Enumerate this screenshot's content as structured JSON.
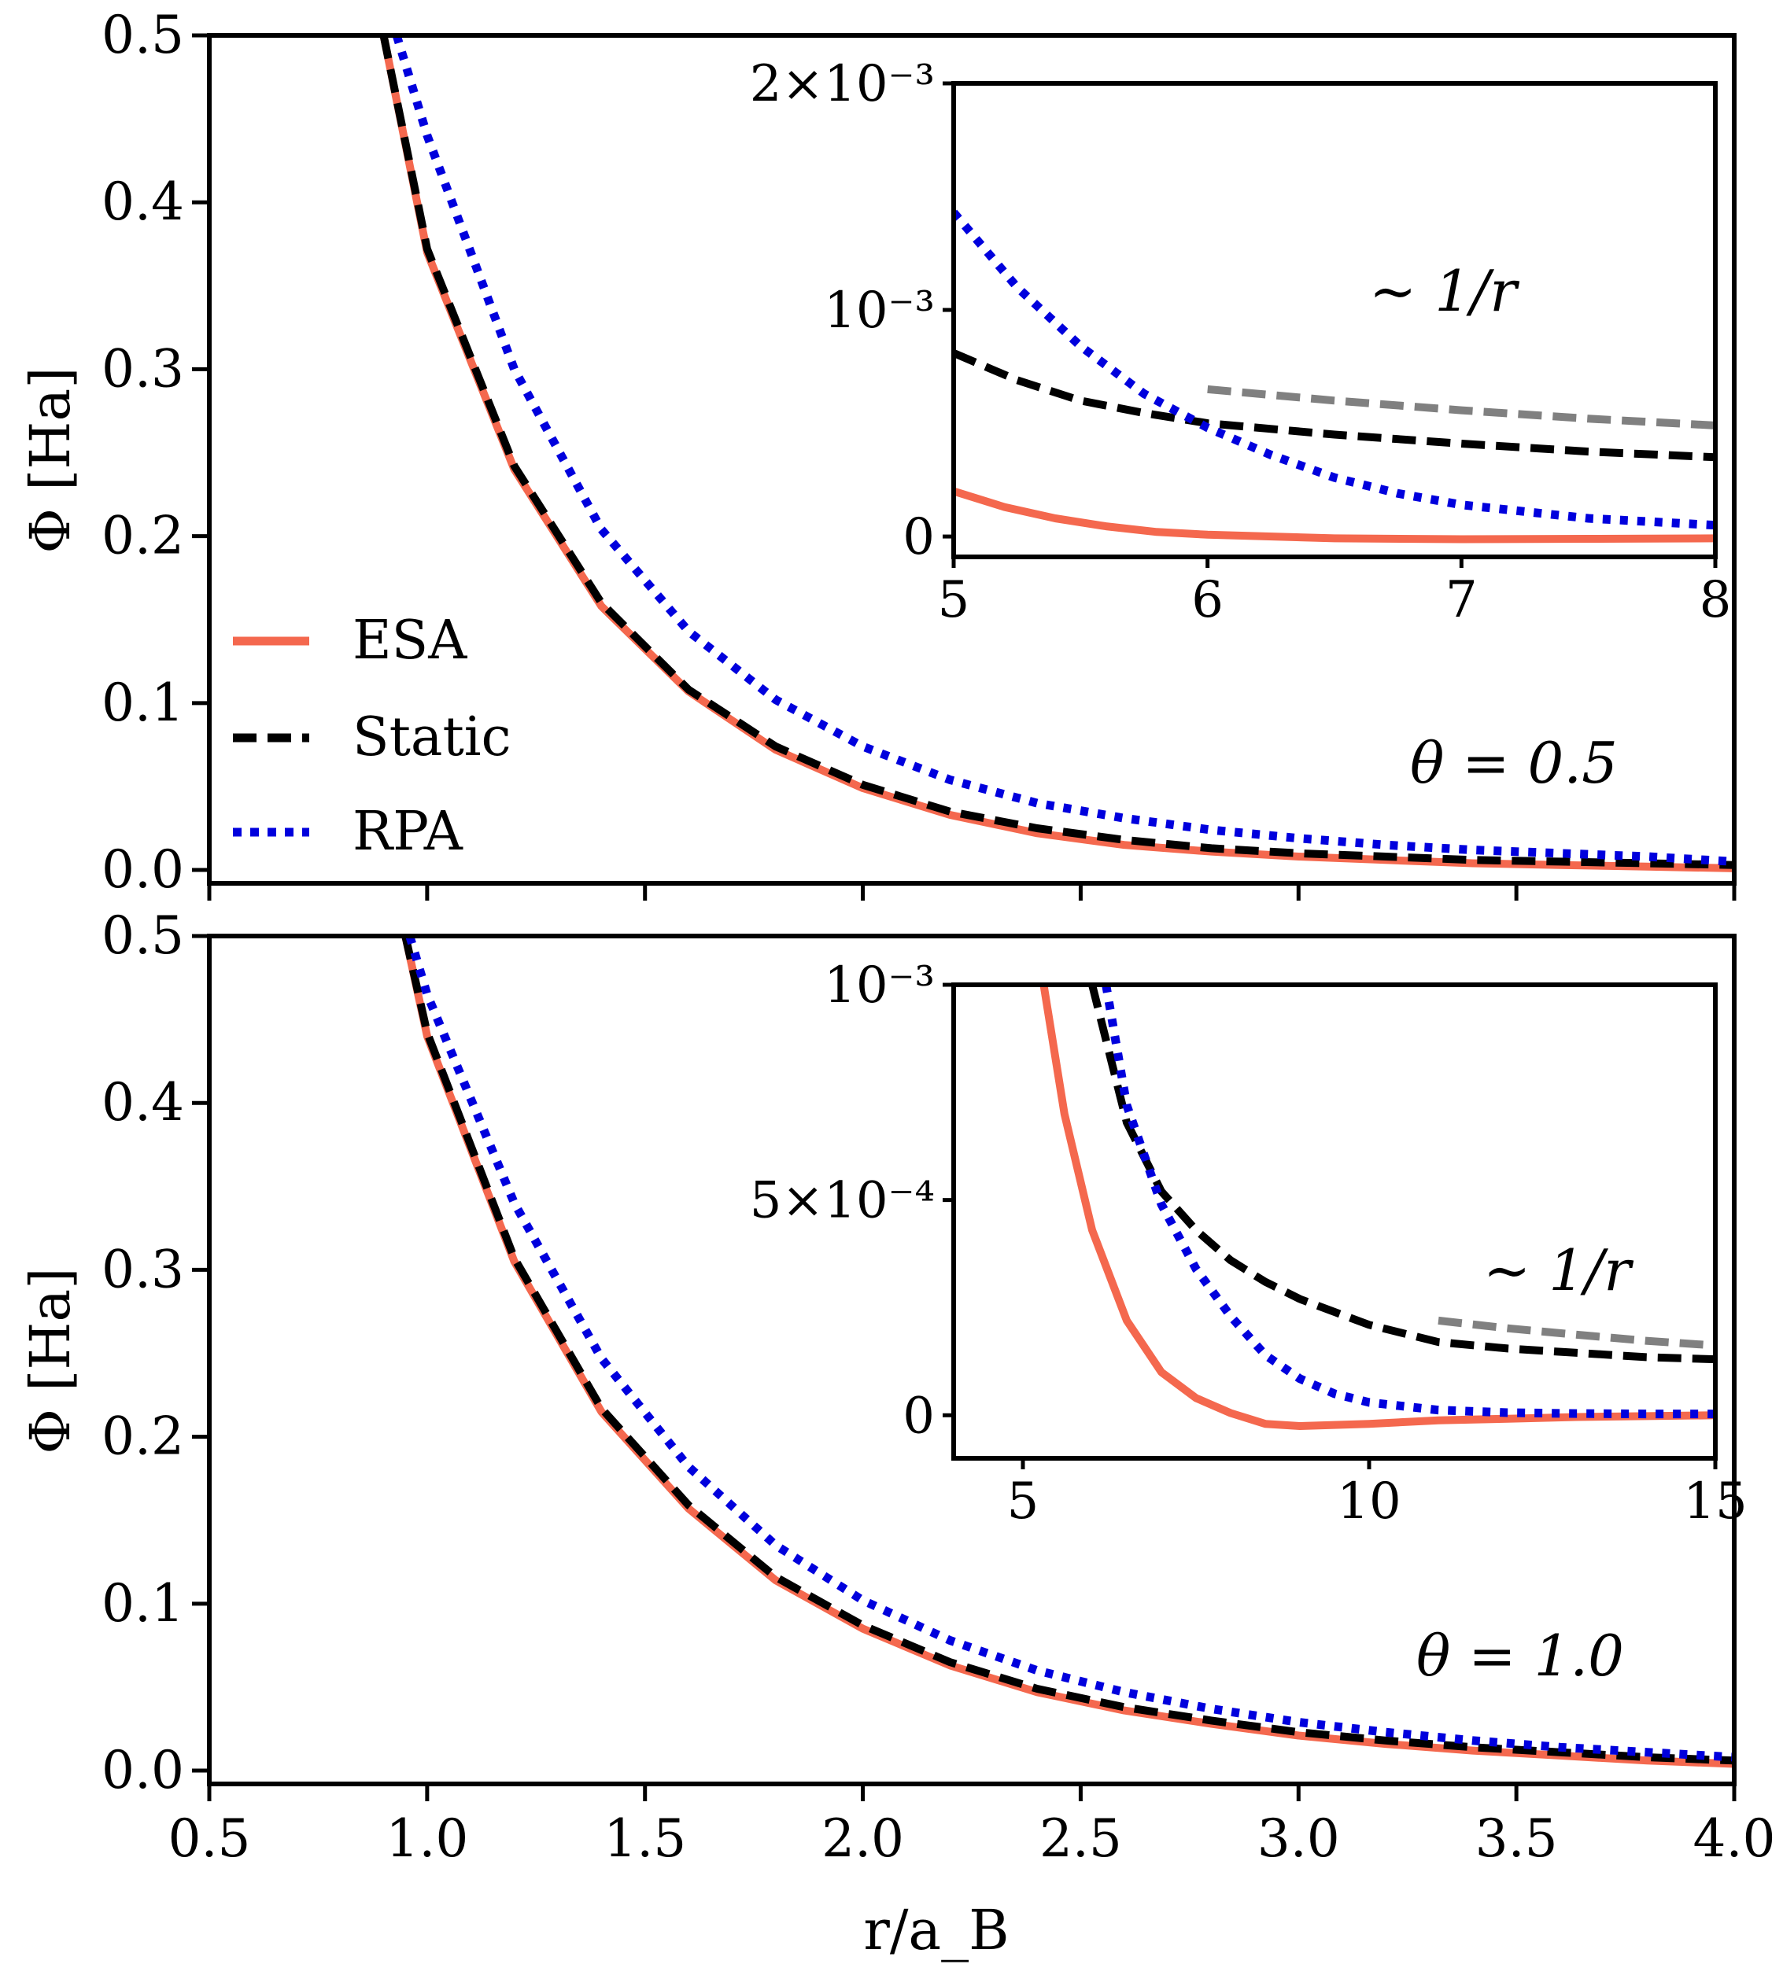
{
  "chart_data": [
    {
      "type": "line",
      "panel": "top",
      "xlabel": "r/a_B",
      "ylabel": "Φ [Ha]",
      "xlim": [
        0.5,
        4.0
      ],
      "ylim": [
        -0.008,
        0.5
      ],
      "xticks": [
        0.5,
        1.0,
        1.5,
        2.0,
        2.5,
        3.0,
        3.5,
        4.0
      ],
      "yticks": [
        0.0,
        0.1,
        0.2,
        0.3,
        0.4,
        0.5
      ],
      "ytick_labels": [
        "0.0",
        "0.1",
        "0.2",
        "0.3",
        "0.4",
        "0.5"
      ],
      "annotation": "θ = 0.5",
      "legend": [
        "ESA",
        "Static",
        "RPA"
      ],
      "series": [
        {
          "name": "ESA",
          "color": "#f4684e",
          "style": "solid",
          "x": [
            0.9,
            1.0,
            1.2,
            1.4,
            1.6,
            1.8,
            2.0,
            2.2,
            2.4,
            2.6,
            2.8,
            3.0,
            3.2,
            3.4,
            3.6,
            3.8,
            4.0
          ],
          "y": [
            0.5,
            0.37,
            0.24,
            0.158,
            0.107,
            0.072,
            0.049,
            0.033,
            0.022,
            0.015,
            0.011,
            0.008,
            0.006,
            0.004,
            0.003,
            0.002,
            0.001
          ]
        },
        {
          "name": "Static",
          "color": "#000000",
          "style": "dashed",
          "x": [
            0.9,
            1.0,
            1.2,
            1.4,
            1.6,
            1.8,
            2.0,
            2.2,
            2.4,
            2.6,
            2.8,
            3.0,
            3.2,
            3.4,
            3.6,
            3.8,
            4.0
          ],
          "y": [
            0.5,
            0.372,
            0.242,
            0.16,
            0.108,
            0.074,
            0.051,
            0.035,
            0.025,
            0.018,
            0.013,
            0.01,
            0.008,
            0.006,
            0.005,
            0.004,
            0.003
          ]
        },
        {
          "name": "RPA",
          "color": "#0000dd",
          "style": "dotted",
          "x": [
            0.93,
            1.0,
            1.2,
            1.4,
            1.6,
            1.8,
            2.0,
            2.2,
            2.4,
            2.6,
            2.8,
            3.0,
            3.2,
            3.4,
            3.6,
            3.8,
            4.0
          ],
          "y": [
            0.5,
            0.44,
            0.3,
            0.204,
            0.143,
            0.102,
            0.074,
            0.054,
            0.04,
            0.031,
            0.024,
            0.019,
            0.015,
            0.012,
            0.01,
            0.008,
            0.005
          ]
        }
      ]
    },
    {
      "type": "line",
      "panel": "top-inset",
      "xlim": [
        5,
        8
      ],
      "ylim": [
        -9e-05,
        0.002
      ],
      "xticks": [
        5,
        6,
        7,
        8
      ],
      "yticks": [
        0,
        0.001,
        0.002
      ],
      "ytick_labels": [
        "0",
        "10⁻³",
        "2×10⁻³"
      ],
      "annotation": "∼ 1/r",
      "series": [
        {
          "name": "ESA",
          "color": "#f4684e",
          "style": "solid",
          "x": [
            5.0,
            5.2,
            5.4,
            5.6,
            5.8,
            6.0,
            6.5,
            7.0,
            7.5,
            8.0
          ],
          "y": [
            0.0002,
            0.00013,
            8e-05,
            4.5e-05,
            2e-05,
            8e-06,
            -8e-06,
            -1.2e-05,
            -1e-05,
            -8e-06
          ]
        },
        {
          "name": "Static",
          "color": "#000000",
          "style": "dashed",
          "x": [
            5.0,
            5.25,
            5.5,
            5.75,
            6.0,
            6.5,
            7.0,
            7.5,
            8.0
          ],
          "y": [
            0.00081,
            0.00069,
            0.0006,
            0.000545,
            0.0005,
            0.00045,
            0.00041,
            0.000375,
            0.00035
          ]
        },
        {
          "name": "RPA",
          "color": "#0000dd",
          "style": "dotted",
          "x": [
            5.0,
            5.25,
            5.5,
            5.75,
            6.0,
            6.25,
            6.5,
            6.75,
            7.0,
            7.5,
            8.0
          ],
          "y": [
            0.00143,
            0.0011,
            0.00084,
            0.00063,
            0.00048,
            0.00036,
            0.00026,
            0.00019,
            0.00014,
            8e-05,
            5e-05
          ]
        },
        {
          "name": "1/r reference",
          "color": "#808080",
          "style": "dashed",
          "x": [
            6.0,
            6.5,
            7.0,
            7.5,
            8.0
          ],
          "y": [
            0.00065,
            0.0006,
            0.000557,
            0.00052,
            0.00049
          ]
        }
      ]
    },
    {
      "type": "line",
      "panel": "bottom",
      "xlabel": "r/a_B",
      "ylabel": "Φ [Ha]",
      "xlim": [
        0.5,
        4.0
      ],
      "ylim": [
        -0.008,
        0.5
      ],
      "xticks": [
        0.5,
        1.0,
        1.5,
        2.0,
        2.5,
        3.0,
        3.5,
        4.0
      ],
      "xtick_labels": [
        "0.5",
        "1.0",
        "1.5",
        "2.0",
        "2.5",
        "3.0",
        "3.5",
        "4.0"
      ],
      "yticks": [
        0.0,
        0.1,
        0.2,
        0.3,
        0.4,
        0.5
      ],
      "ytick_labels": [
        "0.0",
        "0.1",
        "0.2",
        "0.3",
        "0.4",
        "0.5"
      ],
      "annotation": "θ = 1.0",
      "series": [
        {
          "name": "ESA",
          "color": "#f4684e",
          "style": "solid",
          "x": [
            0.95,
            1.0,
            1.2,
            1.4,
            1.6,
            1.8,
            2.0,
            2.2,
            2.4,
            2.6,
            2.8,
            3.0,
            3.2,
            3.4,
            3.6,
            3.8,
            4.0
          ],
          "y": [
            0.5,
            0.44,
            0.305,
            0.215,
            0.157,
            0.114,
            0.085,
            0.063,
            0.047,
            0.036,
            0.028,
            0.021,
            0.016,
            0.012,
            0.009,
            0.006,
            0.004
          ]
        },
        {
          "name": "Static",
          "color": "#000000",
          "style": "dashed",
          "x": [
            0.95,
            1.0,
            1.2,
            1.4,
            1.6,
            1.8,
            2.0,
            2.2,
            2.4,
            2.6,
            2.8,
            3.0,
            3.2,
            3.4,
            3.6,
            3.8,
            4.0
          ],
          "y": [
            0.5,
            0.442,
            0.307,
            0.217,
            0.159,
            0.116,
            0.087,
            0.065,
            0.049,
            0.038,
            0.03,
            0.023,
            0.018,
            0.014,
            0.011,
            0.008,
            0.006
          ]
        },
        {
          "name": "RPA",
          "color": "#0000dd",
          "style": "dotted",
          "x": [
            0.96,
            1.0,
            1.2,
            1.4,
            1.6,
            1.8,
            2.0,
            2.2,
            2.4,
            2.6,
            2.8,
            3.0,
            3.2,
            3.4,
            3.6,
            3.8,
            4.0
          ],
          "y": [
            0.5,
            0.465,
            0.34,
            0.247,
            0.182,
            0.135,
            0.102,
            0.078,
            0.06,
            0.047,
            0.037,
            0.029,
            0.023,
            0.018,
            0.014,
            0.011,
            0.008
          ]
        }
      ]
    },
    {
      "type": "line",
      "panel": "bottom-inset",
      "xlim": [
        4,
        15
      ],
      "ylim": [
        -0.0001,
        0.001
      ],
      "xticks": [
        5,
        10,
        15
      ],
      "yticks": [
        0,
        0.0005,
        0.001
      ],
      "ytick_labels": [
        "0",
        "5×10⁻⁴",
        "10⁻³"
      ],
      "annotation": "∼ 1/r",
      "series": [
        {
          "name": "ESA",
          "color": "#f4684e",
          "style": "solid",
          "x": [
            5.3,
            5.6,
            6.0,
            6.5,
            7.0,
            7.5,
            8.0,
            8.5,
            9.0,
            10.0,
            11.0,
            12.0,
            13.0,
            14.0,
            15.0
          ],
          "y": [
            0.001,
            0.0007,
            0.00043,
            0.00022,
            0.0001,
            4e-05,
            5e-06,
            -2e-05,
            -2.5e-05,
            -2e-05,
            -1.2e-05,
            -8e-06,
            -4e-06,
            -2e-06,
            0.0
          ]
        },
        {
          "name": "Static",
          "color": "#000000",
          "style": "dashed",
          "x": [
            6.0,
            6.5,
            7.0,
            7.5,
            8.0,
            8.5,
            9.0,
            10.0,
            11.0,
            12.0,
            13.0,
            14.0,
            15.0
          ],
          "y": [
            0.001,
            0.00068,
            0.00052,
            0.00043,
            0.00036,
            0.00031,
            0.00027,
            0.00021,
            0.00017,
            0.000155,
            0.000145,
            0.000135,
            0.00013
          ]
        },
        {
          "name": "RPA",
          "color": "#0000dd",
          "style": "dotted",
          "x": [
            6.2,
            6.5,
            7.0,
            7.5,
            8.0,
            8.5,
            9.0,
            9.5,
            10.0,
            11.0,
            12.0,
            13.0,
            14.0,
            15.0
          ],
          "y": [
            0.001,
            0.00072,
            0.00049,
            0.00034,
            0.00023,
            0.00014,
            8.5e-05,
            5e-05,
            3e-05,
            1.2e-05,
            6e-06,
            4e-06,
            3e-06,
            3e-06
          ]
        },
        {
          "name": "1/r reference",
          "color": "#808080",
          "style": "dashed",
          "x": [
            11.0,
            12.0,
            13.0,
            14.0,
            15.0
          ],
          "y": [
            0.00022,
            0.000202,
            0.000187,
            0.000173,
            0.000162
          ]
        }
      ]
    }
  ]
}
